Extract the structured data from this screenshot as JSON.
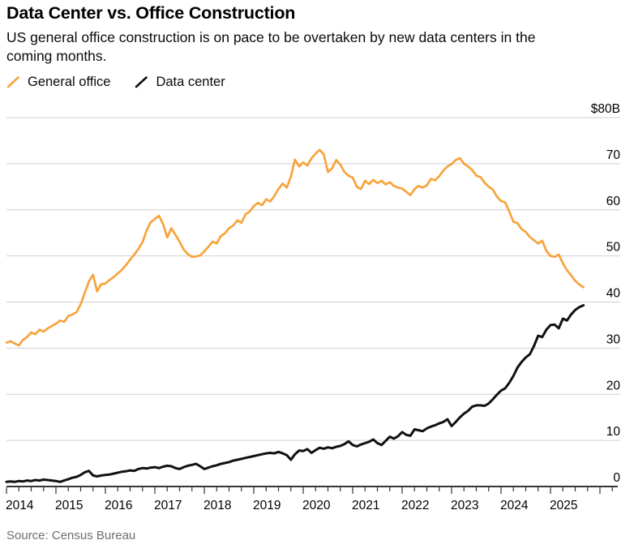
{
  "header": {
    "title": "Data Center vs. Office Construction",
    "subtitle": "US general office construction is on pace to be overtaken by new data centers in the coming months."
  },
  "legend": {
    "items": [
      {
        "label": "General office",
        "color": "#F7A33C",
        "icon": "orange-slash-icon"
      },
      {
        "label": "Data center",
        "color": "#111111",
        "icon": "black-slash-icon"
      }
    ]
  },
  "footer": {
    "source": "Source: Census Bureau"
  },
  "colors": {
    "general_office": "#F7A33C",
    "data_center": "#111111",
    "gridline": "#cfcfcf",
    "axis": "#1a1a1a",
    "tick": "#333333",
    "source_text": "#6e6e6e"
  },
  "chart_data": {
    "type": "line",
    "title": "Data Center vs. Office Construction",
    "x_axis": {
      "start": "2014-01",
      "frequency": "monthly",
      "year_labels": [
        "2014",
        "2015",
        "2016",
        "2017",
        "2018",
        "2019",
        "2020",
        "2021",
        "2022",
        "2023",
        "2024",
        "2025"
      ],
      "minor_ticks": "quarterly",
      "range_years": [
        2014,
        2026.3
      ]
    },
    "y_axis": {
      "position": "right",
      "range": [
        0,
        80
      ],
      "grid": true,
      "ticks": [
        {
          "value": 80,
          "label": "$80B"
        },
        {
          "value": 70,
          "label": "70"
        },
        {
          "value": 60,
          "label": "60"
        },
        {
          "value": 50,
          "label": "50"
        },
        {
          "value": 40,
          "label": "40"
        },
        {
          "value": 30,
          "label": "30"
        },
        {
          "value": 20,
          "label": "20"
        },
        {
          "value": 10,
          "label": "10"
        },
        {
          "value": 0,
          "label": "0"
        }
      ]
    },
    "legend_position": "top-left",
    "series": [
      {
        "name": "General office",
        "color": "#F7A33C",
        "values": [
          31.2,
          31.5,
          31.0,
          30.6,
          31.8,
          32.4,
          33.4,
          33.0,
          34.0,
          33.6,
          34.3,
          34.8,
          35.3,
          36.0,
          35.7,
          37.0,
          37.3,
          37.8,
          39.5,
          42.0,
          44.5,
          45.9,
          42.3,
          43.9,
          44.0,
          44.8,
          45.4,
          46.2,
          47.0,
          48.0,
          49.2,
          50.3,
          51.5,
          53.0,
          55.5,
          57.3,
          58.0,
          58.7,
          56.9,
          54.0,
          56.0,
          54.6,
          53.1,
          51.4,
          50.4,
          49.8,
          49.9,
          50.1,
          51.0,
          52.0,
          53.1,
          52.7,
          54.3,
          54.9,
          56.0,
          56.6,
          57.7,
          57.2,
          59.0,
          59.6,
          60.8,
          61.5,
          61.0,
          62.3,
          61.8,
          63.0,
          64.5,
          65.7,
          64.8,
          67.2,
          70.9,
          69.4,
          70.3,
          69.6,
          71.2,
          72.2,
          73.0,
          72.0,
          68.2,
          69.0,
          70.8,
          69.8,
          68.2,
          67.4,
          67.0,
          65.0,
          64.5,
          66.3,
          65.6,
          66.5,
          65.8,
          66.3,
          65.5,
          66.0,
          65.2,
          64.8,
          64.6,
          63.9,
          63.2,
          64.5,
          65.2,
          64.8,
          65.3,
          66.7,
          66.4,
          67.3,
          68.5,
          69.4,
          69.9,
          70.8,
          71.2,
          70.0,
          69.4,
          68.6,
          67.4,
          67.1,
          65.9,
          65.0,
          64.4,
          62.9,
          61.9,
          61.6,
          59.6,
          57.4,
          57.1,
          55.8,
          55.2,
          54.1,
          53.4,
          52.7,
          53.3,
          51.1,
          50.0,
          49.8,
          50.3,
          48.4,
          46.9,
          45.8,
          44.6,
          43.8,
          43.2
        ]
      },
      {
        "name": "Data center",
        "color": "#111111",
        "values": [
          1.0,
          1.1,
          1.0,
          1.2,
          1.1,
          1.3,
          1.2,
          1.4,
          1.3,
          1.5,
          1.4,
          1.3,
          1.2,
          1.0,
          1.3,
          1.6,
          1.9,
          2.1,
          2.5,
          3.1,
          3.4,
          2.4,
          2.2,
          2.4,
          2.5,
          2.6,
          2.8,
          3.0,
          3.2,
          3.3,
          3.5,
          3.4,
          3.8,
          4.0,
          3.9,
          4.1,
          4.2,
          4.0,
          4.3,
          4.5,
          4.4,
          4.0,
          3.8,
          4.2,
          4.5,
          4.7,
          4.9,
          4.4,
          3.8,
          4.1,
          4.4,
          4.6,
          4.9,
          5.1,
          5.3,
          5.6,
          5.8,
          6.0,
          6.2,
          6.4,
          6.6,
          6.8,
          7.0,
          7.2,
          7.3,
          7.2,
          7.5,
          7.2,
          6.8,
          5.8,
          7.0,
          7.8,
          7.7,
          8.1,
          7.3,
          7.9,
          8.4,
          8.2,
          8.5,
          8.3,
          8.6,
          8.8,
          9.2,
          9.8,
          9.0,
          8.7,
          9.1,
          9.4,
          9.7,
          10.2,
          9.4,
          9.0,
          9.9,
          10.8,
          10.4,
          10.9,
          11.8,
          11.2,
          11.0,
          12.4,
          12.2,
          12.0,
          12.6,
          13.0,
          13.3,
          13.7,
          14.0,
          14.6,
          13.1,
          14.0,
          15.0,
          15.8,
          16.4,
          17.3,
          17.6,
          17.6,
          17.5,
          18.0,
          18.9,
          19.9,
          20.8,
          21.3,
          22.5,
          24.0,
          25.8,
          27.0,
          28.0,
          28.7,
          30.5,
          32.7,
          32.4,
          34.0,
          35.0,
          35.1,
          34.3,
          36.4,
          36.0,
          37.3,
          38.3,
          38.9,
          39.3
        ]
      }
    ]
  }
}
